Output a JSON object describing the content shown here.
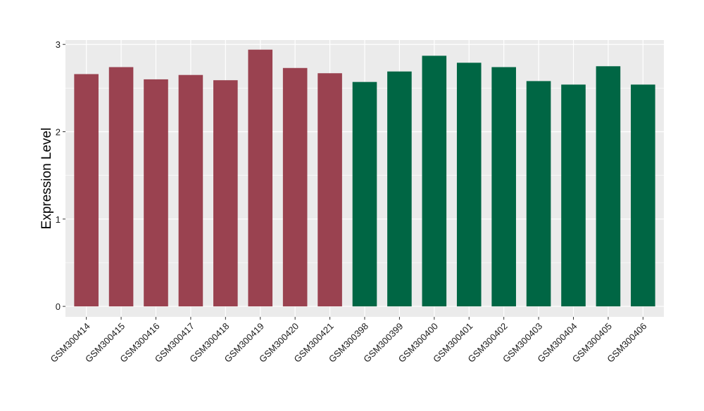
{
  "chart_data": {
    "type": "bar",
    "title": "",
    "xlabel": "",
    "ylabel": "Expression Level",
    "ylim": [
      -0.12,
      3.05
    ],
    "y_ticks": [
      0,
      1,
      2,
      3
    ],
    "grid": true,
    "categories": [
      "GSM300414",
      "GSM300415",
      "GSM300416",
      "GSM300417",
      "GSM300418",
      "GSM300419",
      "GSM300420",
      "GSM300421",
      "GSM300398",
      "GSM300399",
      "GSM300400",
      "GSM300401",
      "GSM300402",
      "GSM300403",
      "GSM300404",
      "GSM300405",
      "GSM300406"
    ],
    "values": [
      2.66,
      2.74,
      2.6,
      2.65,
      2.59,
      2.94,
      2.73,
      2.67,
      2.57,
      2.69,
      2.87,
      2.79,
      2.74,
      2.58,
      2.54,
      2.75,
      2.54
    ],
    "groups": [
      "a",
      "a",
      "a",
      "a",
      "a",
      "a",
      "a",
      "a",
      "b",
      "b",
      "b",
      "b",
      "b",
      "b",
      "b",
      "b",
      "b"
    ],
    "group_colors": {
      "a": "#9a4250",
      "b": "#006644"
    },
    "panel_background": "#ebebeb",
    "gridline_color": "#ffffff"
  }
}
